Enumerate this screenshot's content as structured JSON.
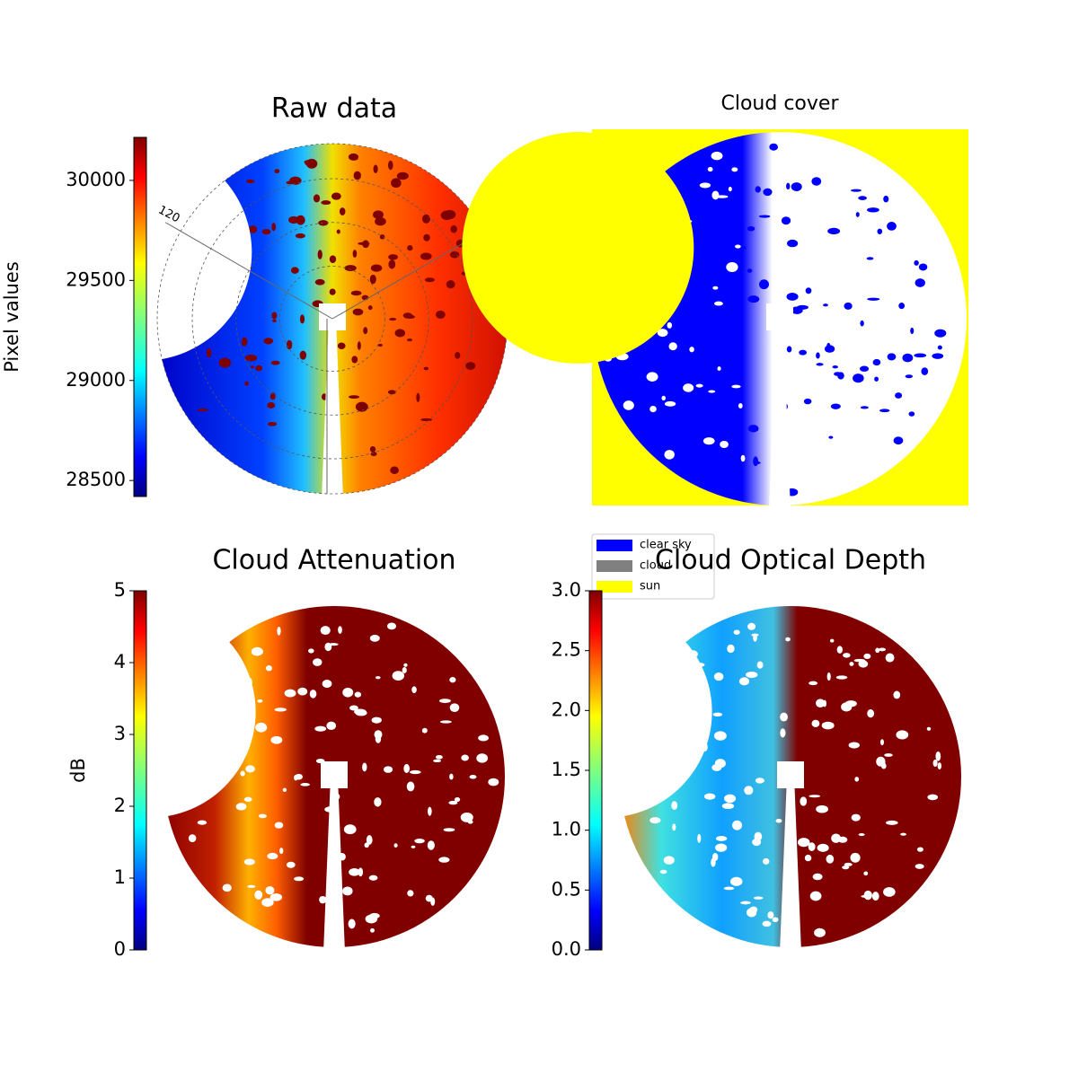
{
  "chart_data": [
    {
      "type": "image",
      "title": "Raw data",
      "colorbar_label": "Pixel values",
      "ylim": [
        28420,
        30215
      ],
      "yticks": [
        28500,
        29000,
        29500,
        30000
      ],
      "polar_label": "120"
    },
    {
      "type": "classmap",
      "title": "Cloud cover",
      "legend": [
        {
          "name": "clear sky",
          "color": "#0000ff"
        },
        {
          "name": "cloud",
          "color": "#808080"
        },
        {
          "name": "sun",
          "color": "#ffff00"
        }
      ]
    },
    {
      "type": "image",
      "title": "Cloud Attenuation",
      "colorbar_label": "dB",
      "ylim": [
        0,
        5
      ],
      "yticks": [
        0,
        1,
        2,
        3,
        4,
        5
      ]
    },
    {
      "type": "image",
      "title": "Cloud Optical Depth",
      "ylim": [
        0,
        3
      ],
      "yticks": [
        {
          "value": 0,
          "label": "0.0"
        },
        0.5,
        {
          "value": 1,
          "label": "1.0"
        },
        1.5,
        {
          "value": 2,
          "label": "2.0"
        },
        2.5,
        {
          "value": 3,
          "label": "3.0"
        }
      ]
    }
  ]
}
